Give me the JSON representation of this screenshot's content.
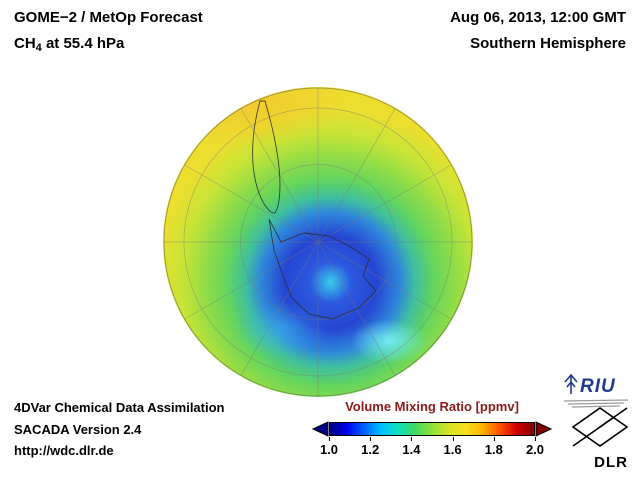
{
  "header": {
    "title": "GOME−2 / MetOp Forecast",
    "subtitle_prefix": "CH",
    "subtitle_sub": "4",
    "subtitle_rest": " at 55.4 hPa",
    "date": "Aug 06, 2013, 12:00 GMT",
    "region": "Southern Hemisphere"
  },
  "footer": {
    "line1": "4DVar Chemical Data Assimilation",
    "line2": "SACADA Version 2.4",
    "line3": "http://wdc.dlr.de"
  },
  "colorbar": {
    "title": "Volume Mixing Ratio [ppmv]",
    "unit": "ppmv",
    "min": 1.0,
    "max": 2.0,
    "ticks": [
      "1.0",
      "1.2",
      "1.4",
      "1.6",
      "1.8",
      "2.0"
    ],
    "colors": [
      "#000080",
      "#0000f0",
      "#0060ff",
      "#00c0ff",
      "#10e0c0",
      "#40d860",
      "#90e038",
      "#d8e428",
      "#f8e020",
      "#ffb000",
      "#ff5000",
      "#d00000",
      "#800000"
    ],
    "arrow_left_color": "#000080",
    "arrow_right_color": "#800000",
    "title_color": "#8b1a1a"
  },
  "globe": {
    "center": "54% 63%",
    "gradient": [
      "#38cdec 0%",
      "#2c5ade 8%",
      "#2545d2 18%",
      "#2f86dc 27%",
      "#3fbf9f 33%",
      "#62d45f 40%",
      "#8edc48 48%",
      "#c8e436 58%",
      "#ecdf2e 68%",
      "#f2d731 100%"
    ],
    "patches": [
      "radial-gradient(ellipse 55px 32px at 73% 82%, rgba(120,240,248,0.9), rgba(120,240,248,0) 70%)",
      "radial-gradient(ellipse 70px 40px at 38% 78%, rgba(60,190,240,0.45), rgba(60,190,240,0) 70%)",
      "radial-gradient(ellipse 130px 60px at 28% 5%, rgba(242,198,44,0.85), rgba(242,198,44,0) 75%)"
    ]
  },
  "logos": {
    "riu": "RIU",
    "dlr": "DLR"
  }
}
